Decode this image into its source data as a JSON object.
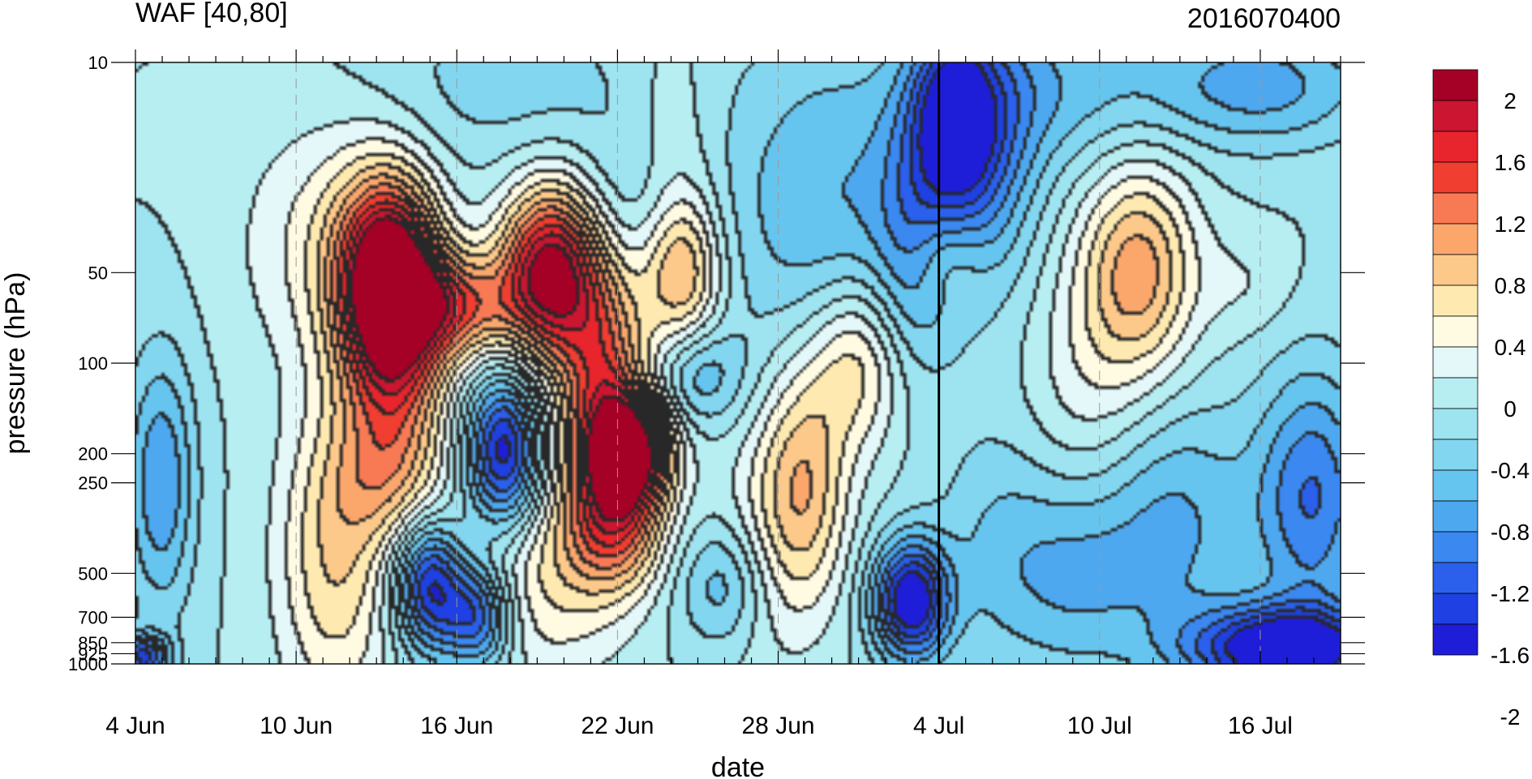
{
  "chart_data": {
    "type": "heatmap",
    "title": "WAF [40,80]",
    "title_right": "2016070400",
    "xlabel": "date",
    "ylabel": "pressure (hPa)",
    "x_ticks": [
      "4 Jun",
      "10 Jun",
      "16 Jun",
      "22 Jun",
      "28 Jun",
      "4 Jul",
      "10 Jul",
      "16 Jul"
    ],
    "x_tick_days": [
      0,
      6,
      12,
      18,
      24,
      30,
      36,
      42
    ],
    "x_range_days": [
      0,
      45
    ],
    "y_ticks": [
      "10",
      "50",
      "100",
      "200",
      "250",
      "500",
      "700",
      "850",
      "925",
      "1000"
    ],
    "y_tick_values": [
      10,
      50,
      100,
      200,
      250,
      500,
      700,
      850,
      925,
      1000
    ],
    "y_scale": "log",
    "y_reversed": true,
    "y_range": [
      10,
      1000
    ],
    "current_date_marker": "4 Jul",
    "colorbar": {
      "labels": [
        "2",
        "1.6",
        "1.2",
        "0.8",
        "0.4",
        "0",
        "-0.4",
        "-0.8",
        "-1.2",
        "-1.6",
        "-2"
      ],
      "levels": [
        2.2,
        2.0,
        1.8,
        1.6,
        1.4,
        1.2,
        1.0,
        0.8,
        0.6,
        0.4,
        0.2,
        0,
        -0.2,
        -0.4,
        -0.6,
        -0.8,
        -1.0,
        -1.2,
        -1.4,
        -1.6,
        -1.8,
        -2.0,
        -2.2
      ],
      "colors": [
        "#a50026",
        "#cc1530",
        "#e8242d",
        "#f03e30",
        "#f77a55",
        "#fba76c",
        "#fdc98a",
        "#feeab0",
        "#fffbe3",
        "#e4f8f9",
        "#b6eef2",
        "#9ee3f0",
        "#82d6ef",
        "#66c5ee",
        "#4ea8f0",
        "#3a88f0",
        "#2a60ec",
        "#1f40e2",
        "#1e1ed8"
      ]
    },
    "features": [
      {
        "day": 9.5,
        "p": 50,
        "value": 2.1,
        "sd": 1.3,
        "sp": 0.22
      },
      {
        "day": 9.7,
        "p": 110,
        "value": 1.2,
        "sd": 1.4,
        "sp": 0.25
      },
      {
        "day": 7.5,
        "p": 40,
        "value": 0.5,
        "sd": 2.4,
        "sp": 0.3
      },
      {
        "day": 12.0,
        "p": 65,
        "value": 1.2,
        "sd": 1.6,
        "sp": 0.12
      },
      {
        "day": 15.5,
        "p": 50,
        "value": 2.1,
        "sd": 1.3,
        "sp": 0.2
      },
      {
        "day": 17.5,
        "p": 120,
        "value": 1.4,
        "sd": 1.2,
        "sp": 0.3
      },
      {
        "day": 18.5,
        "p": 200,
        "value": 2.0,
        "sd": 1.1,
        "sp": 0.13
      },
      {
        "day": 18.0,
        "p": 360,
        "value": 1.0,
        "sd": 1.3,
        "sp": 0.15
      },
      {
        "day": 15.5,
        "p": 500,
        "value": 0.6,
        "sd": 2.0,
        "sp": 0.25
      },
      {
        "day": 7.5,
        "p": 450,
        "value": 0.8,
        "sd": 1.5,
        "sp": 0.35
      },
      {
        "day": 9.5,
        "p": 250,
        "value": 0.5,
        "sd": 1.5,
        "sp": 0.15
      },
      {
        "day": 13.8,
        "p": 200,
        "value": -1.6,
        "sd": 1.0,
        "sp": 0.18
      },
      {
        "day": 11.0,
        "p": 550,
        "value": -1.4,
        "sd": 0.9,
        "sp": 0.15
      },
      {
        "day": 12.8,
        "p": 700,
        "value": -1.2,
        "sd": 0.9,
        "sp": 0.12
      },
      {
        "day": 1.0,
        "p": 250,
        "value": -0.8,
        "sd": 0.9,
        "sp": 0.3
      },
      {
        "day": 0.3,
        "p": 950,
        "value": -1.2,
        "sd": 0.7,
        "sp": 0.05
      },
      {
        "day": 20.5,
        "p": 50,
        "value": 0.9,
        "sd": 1.0,
        "sp": 0.18
      },
      {
        "day": 14.0,
        "p": 12,
        "value": -0.3,
        "sd": 4.0,
        "sp": 0.2
      },
      {
        "day": 20.0,
        "p": 28,
        "value": 0.4,
        "sd": 1.2,
        "sp": 0.35
      },
      {
        "day": 25.0,
        "p": 250,
        "value": 0.9,
        "sd": 1.2,
        "sp": 0.28
      },
      {
        "day": 27.0,
        "p": 100,
        "value": 0.8,
        "sd": 1.3,
        "sp": 0.2
      },
      {
        "day": 23.5,
        "p": 400,
        "value": 0.3,
        "sd": 1.5,
        "sp": 0.3
      },
      {
        "day": 26.0,
        "p": 30,
        "value": -0.6,
        "sd": 3.0,
        "sp": 0.4
      },
      {
        "day": 29.0,
        "p": 40,
        "value": -0.5,
        "sd": 1.0,
        "sp": 0.3
      },
      {
        "day": 31.5,
        "p": 20,
        "value": -0.9,
        "sd": 1.5,
        "sp": 0.3
      },
      {
        "day": 29.0,
        "p": 620,
        "value": -1.7,
        "sd": 1.0,
        "sp": 0.14
      },
      {
        "day": 22.0,
        "p": 550,
        "value": -0.6,
        "sd": 1.2,
        "sp": 0.15
      },
      {
        "day": 21.0,
        "p": 110,
        "value": -0.6,
        "sd": 1.2,
        "sp": 0.12
      },
      {
        "day": 19.0,
        "p": 30,
        "value": -0.4,
        "sd": 1.5,
        "sp": 0.2
      },
      {
        "day": 30.2,
        "p": 45,
        "value": 0.3,
        "sd": 1.0,
        "sp": 0.1
      },
      {
        "day": 30.5,
        "p": 15,
        "value": -1.0,
        "sd": 1.0,
        "sp": 0.2
      },
      {
        "day": 37.5,
        "p": 50,
        "value": 1.1,
        "sd": 1.5,
        "sp": 0.25
      },
      {
        "day": 35.5,
        "p": 120,
        "value": 0.3,
        "sd": 1.5,
        "sp": 0.3
      },
      {
        "day": 41.5,
        "p": 55,
        "value": 0.2,
        "sd": 1.2,
        "sp": 0.12
      },
      {
        "day": 43.0,
        "p": 900,
        "value": -1.8,
        "sd": 2.5,
        "sp": 0.1
      },
      {
        "day": 44.0,
        "p": 280,
        "value": -1.0,
        "sd": 1.5,
        "sp": 0.3
      },
      {
        "day": 42.0,
        "p": 12,
        "value": -0.7,
        "sd": 3.0,
        "sp": 0.15
      },
      {
        "day": 34.0,
        "p": 12,
        "value": -0.5,
        "sd": 3.0,
        "sp": 0.2
      },
      {
        "day": 35.0,
        "p": 500,
        "value": -0.6,
        "sd": 2.0,
        "sp": 0.25
      },
      {
        "day": 39.0,
        "p": 350,
        "value": -0.6,
        "sd": 2.0,
        "sp": 0.3
      },
      {
        "day": 32.0,
        "p": 400,
        "value": -0.3,
        "sd": 1.5,
        "sp": 0.3
      }
    ]
  }
}
